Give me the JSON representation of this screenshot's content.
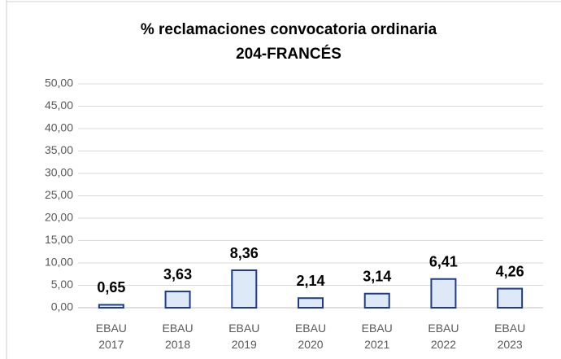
{
  "chart_data": {
    "type": "bar",
    "title": "% reclamaciones convocatoria ordinaria",
    "subtitle": "204-FRANCÉS",
    "categories": [
      "EBAU 2017",
      "EBAU 2018",
      "EBAU 2019",
      "EBAU 2020",
      "EBAU 2021",
      "EBAU 2022",
      "EBAU 2023"
    ],
    "values": [
      0.65,
      3.63,
      8.36,
      2.14,
      3.14,
      6.41,
      4.26
    ],
    "value_labels": [
      "0,65",
      "3,63",
      "8,36",
      "2,14",
      "3,14",
      "6,41",
      "4,26"
    ],
    "color": "#dde9f7",
    "edge_color": "#1f3b8f",
    "ylim": [
      0,
      50
    ],
    "yticks": [
      {
        "value": 0,
        "label": "0,00"
      },
      {
        "value": 5,
        "label": "5,00"
      },
      {
        "value": 10,
        "label": "10,00"
      },
      {
        "value": 15,
        "label": "15,00"
      },
      {
        "value": 20,
        "label": "20,00"
      },
      {
        "value": 25,
        "label": "25,00"
      },
      {
        "value": 30,
        "label": "30,00"
      },
      {
        "value": 35,
        "label": "35,00"
      },
      {
        "value": 40,
        "label": "40,00"
      },
      {
        "value": 45,
        "label": "45,00"
      },
      {
        "value": 50,
        "label": "50,00"
      }
    ],
    "grid": true
  }
}
